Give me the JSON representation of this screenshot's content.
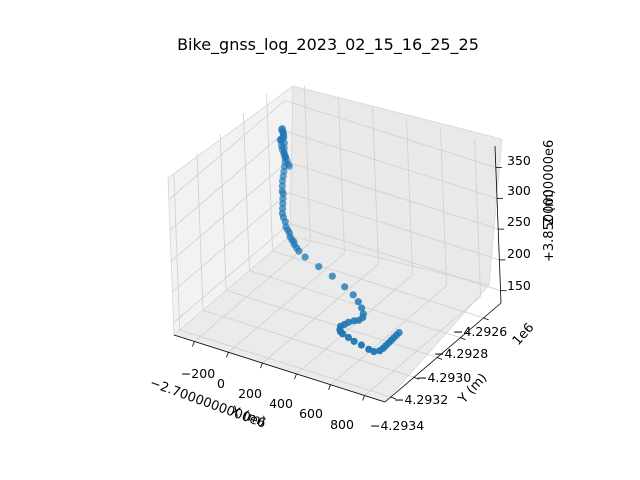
{
  "chart_data": {
    "type": "scatter",
    "title": "Bike_gnss_log_2023_02_15_16_25_25",
    "xlabel": "X (m)",
    "ylabel": "Y (m)",
    "zlabel": "Z (m)",
    "x_offset_label": "−2.7000000000e6",
    "y_offset_label": "1e6",
    "z_offset_label": "+3.8500000000e6",
    "xticks": [
      "−200",
      "0",
      "200",
      "400",
      "600",
      "800"
    ],
    "yticks": [
      "−4.2934",
      "−4.2932",
      "−4.2930",
      "−4.2928",
      "−4.2926"
    ],
    "zticks": [
      "150",
      "200",
      "250",
      "300",
      "350"
    ],
    "xlim": [
      -320,
      920
    ],
    "ylim": [
      -4.29345,
      -4.29245
    ],
    "zlim": [
      130,
      385
    ],
    "grid": true,
    "marker_color": "#1f77b4",
    "x": [
      -250,
      -248,
      -245,
      -242,
      -238,
      -230,
      -222,
      -215,
      -210,
      -205,
      -200,
      -192,
      -185,
      -175,
      -160,
      -145,
      -135,
      -130,
      -128,
      -125,
      -120,
      -110,
      -100,
      -90,
      -85,
      -80,
      -72,
      -68,
      -66,
      -64,
      -62,
      -60,
      -55,
      -50,
      -45,
      -40,
      -35,
      -30,
      -25,
      -20,
      -10,
      0,
      10,
      20,
      30,
      40,
      50,
      60,
      80,
      100,
      150,
      250,
      350,
      450,
      520,
      570,
      610,
      640,
      650,
      640,
      620,
      600,
      590,
      580,
      590,
      600,
      620,
      660,
      700,
      750,
      800,
      830,
      850,
      850,
      845,
      840,
      835,
      830,
      825,
      820
    ],
    "y": [
      -4.29253,
      -4.29254,
      -4.29255,
      -4.29256,
      -4.29258,
      -4.29259,
      -4.29261,
      -4.29262,
      -4.29264,
      -4.29265,
      -4.29266,
      -4.29267,
      -4.29269,
      -4.2927,
      -4.29271,
      -4.29272,
      -4.29273,
      -4.29274,
      -4.29275,
      -4.29276,
      -4.29276,
      -4.29277,
      -4.29278,
      -4.29279,
      -4.2928,
      -4.29281,
      -4.29281,
      -4.29282,
      -4.29283,
      -4.29284,
      -4.29285,
      -4.29286,
      -4.29287,
      -4.29288,
      -4.29288,
      -4.29289,
      -4.2929,
      -4.29291,
      -4.29292,
      -4.29292,
      -4.29292,
      -4.29293,
      -4.29293,
      -4.29293,
      -4.29294,
      -4.29294,
      -4.29294,
      -4.29295,
      -4.29296,
      -4.29297,
      -4.29299,
      -4.29302,
      -4.29305,
      -4.29309,
      -4.29312,
      -4.29315,
      -4.29318,
      -4.29321,
      -4.29323,
      -4.29325,
      -4.29326,
      -4.29328,
      -4.2933,
      -4.29332,
      -4.29334,
      -4.29335,
      -4.29336,
      -4.29337,
      -4.29338,
      -4.29339,
      -4.2934,
      -4.2934,
      -4.29338,
      -4.29335,
      -4.29332,
      -4.29329,
      -4.29326,
      -4.29323,
      -4.2932,
      -4.29317
    ],
    "z": [
      262,
      266,
      270,
      278,
      284,
      290,
      296,
      302,
      310,
      316,
      322,
      330,
      336,
      340,
      344,
      350,
      356,
      362,
      366,
      370,
      372,
      368,
      362,
      356,
      350,
      344,
      338,
      332,
      326,
      320,
      314,
      308,
      302,
      296,
      292,
      286,
      280,
      274,
      268,
      262,
      256,
      250,
      246,
      242,
      238,
      234,
      232,
      230,
      228,
      226,
      224,
      222,
      220,
      218,
      216,
      214,
      212,
      210,
      208,
      206,
      205,
      204,
      203,
      202,
      201,
      200,
      200,
      199,
      198,
      198,
      197,
      196,
      196,
      195,
      194,
      193,
      192,
      191,
      190,
      189
    ]
  }
}
